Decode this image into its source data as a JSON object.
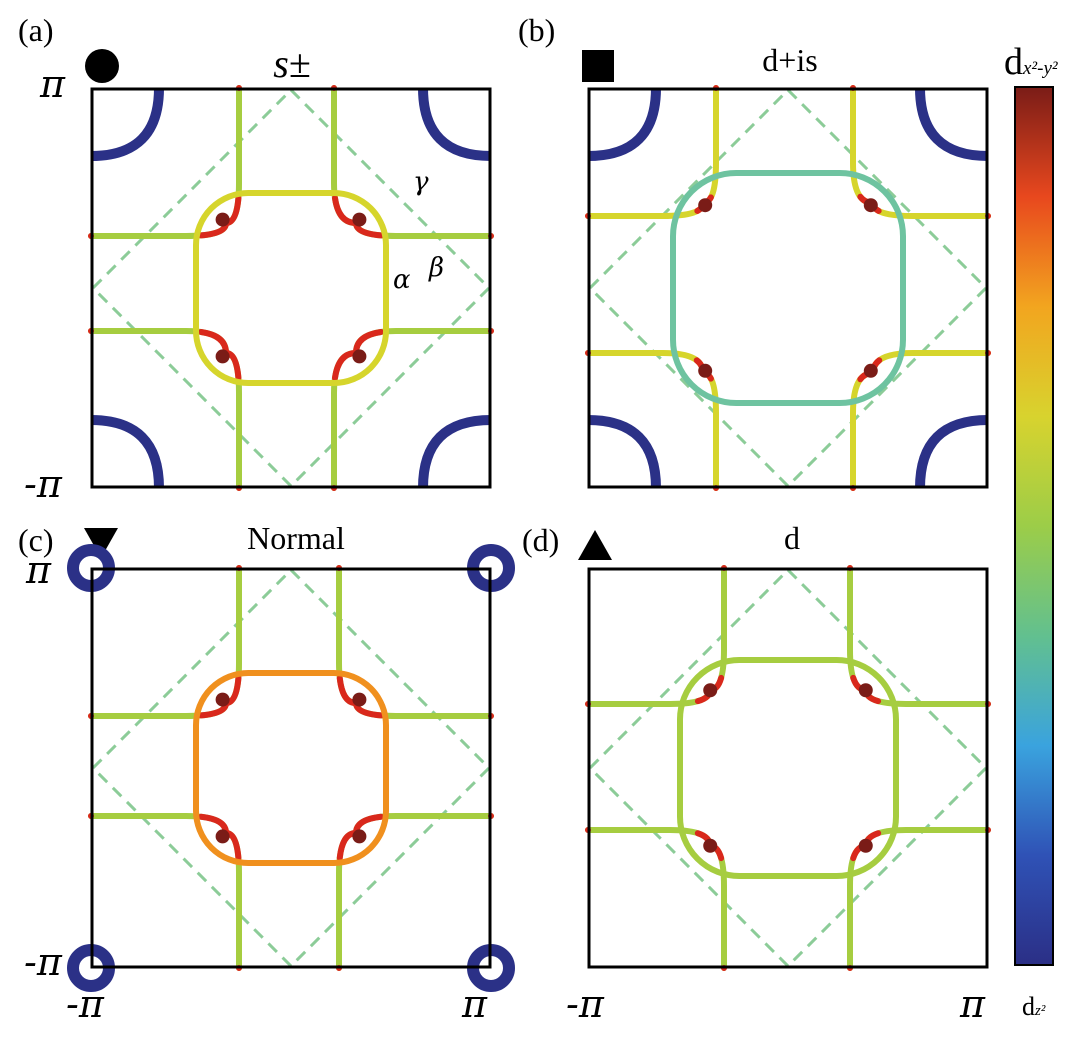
{
  "panels": [
    {
      "id": "a",
      "label": "(a)",
      "title": "s±",
      "marker": "circle",
      "marker_icon": "circle-marker-icon",
      "y_tick_top": "π",
      "y_tick_bottom": "-π",
      "x_tick_left": "",
      "x_tick_right": "",
      "band_labels": {
        "gamma": "γ",
        "beta": "β",
        "alpha": "α"
      }
    },
    {
      "id": "b",
      "label": "(b)",
      "title": "d+is",
      "marker": "square",
      "marker_icon": "square-marker-icon",
      "y_tick_top": "",
      "y_tick_bottom": "",
      "x_tick_left": "",
      "x_tick_right": ""
    },
    {
      "id": "c",
      "label": "(c)",
      "title": "Normal",
      "marker": "triangle-down",
      "marker_icon": "triangle-down-marker-icon",
      "y_tick_top": "π",
      "y_tick_bottom": "-π",
      "x_tick_left": "-π",
      "x_tick_right": "π"
    },
    {
      "id": "d",
      "label": "(d)",
      "title": "d",
      "marker": "triangle-up",
      "marker_icon": "triangle-up-marker-icon",
      "y_tick_top": "",
      "y_tick_bottom": "",
      "x_tick_left": "-π",
      "x_tick_right": "π"
    }
  ],
  "colorbar": {
    "top_base": "d",
    "top_sub": "x²-y²",
    "bottom_base": "d",
    "bottom_sub": "z²",
    "colors": [
      "#2b2f86",
      "#2f52b6",
      "#3aa3de",
      "#62c08f",
      "#9ccd48",
      "#d8d32e",
      "#f2a51f",
      "#e8481e",
      "#7a1c17"
    ]
  },
  "colors": {
    "dxy_pocket": "#2b3187",
    "dashed_zone": "#8ccc98",
    "ring_yellow": "#d6d52c",
    "ring_orange": "#f0901e",
    "ring_red": "#d9281c",
    "ring_darkred": "#7a1c17",
    "ring_teal": "#6ec3a0",
    "line_green": "#a6cd40"
  }
}
